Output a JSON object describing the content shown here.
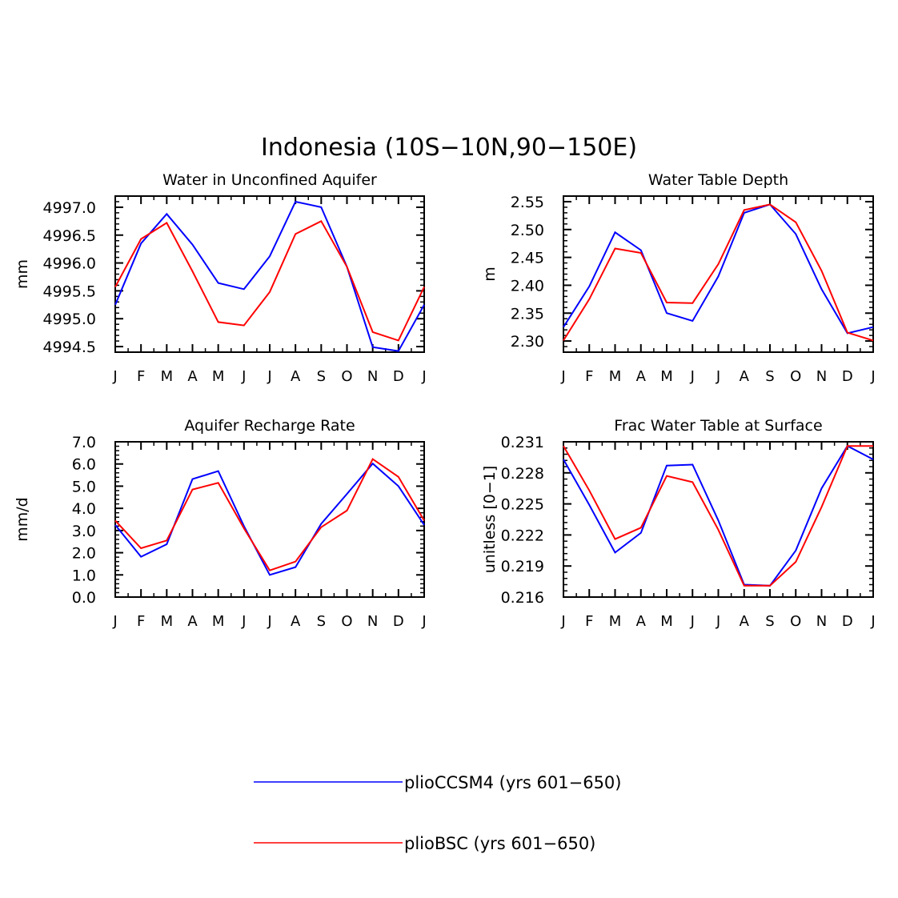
{
  "figure": {
    "title": "Indonesia (10S−10N,90−150E)"
  },
  "legend": {
    "placement": "bottom-center",
    "entries": [
      {
        "label": "plioCCSM4 (yrs 601−650)",
        "color": "#0000ff"
      },
      {
        "label": "plioBSC (yrs 601−650)",
        "color": "#ff0000"
      }
    ]
  },
  "chart_data": [
    {
      "type": "line",
      "title": "Water in Unconfined Aquifer",
      "xlabel": "",
      "ylabel": "mm",
      "categories": [
        "J",
        "F",
        "M",
        "A",
        "M",
        "J",
        "J",
        "A",
        "S",
        "O",
        "N",
        "D",
        "J"
      ],
      "ylim": [
        4994.4,
        4997.2
      ],
      "yticks": [
        4994.5,
        4995.0,
        4995.5,
        4996.0,
        4996.5,
        4997.0
      ],
      "ytick_labels": [
        "4994.5",
        "4995.0",
        "4995.5",
        "4996.0",
        "4996.5",
        "4997.0"
      ],
      "grid": false,
      "series": [
        {
          "name": "plioCCSM4 (yrs 601−650)",
          "color": "#0000ff",
          "values": [
            4995.25,
            4996.35,
            4996.88,
            4996.33,
            4995.64,
            4995.53,
            4996.12,
            4997.1,
            4997.0,
            4995.93,
            4994.49,
            4994.42,
            4995.25
          ]
        },
        {
          "name": "plioBSC (yrs 601−650)",
          "color": "#ff0000",
          "values": [
            4995.57,
            4996.43,
            4996.72,
            4995.85,
            4994.94,
            4994.88,
            4995.48,
            4996.52,
            4996.75,
            4995.93,
            4994.76,
            4994.61,
            4995.57
          ]
        }
      ]
    },
    {
      "type": "line",
      "title": "Water Table Depth",
      "xlabel": "",
      "ylabel": "m",
      "categories": [
        "J",
        "F",
        "M",
        "A",
        "M",
        "J",
        "J",
        "A",
        "S",
        "O",
        "N",
        "D",
        "J"
      ],
      "ylim": [
        2.28,
        2.56
      ],
      "yticks": [
        2.3,
        2.35,
        2.4,
        2.45,
        2.5,
        2.55
      ],
      "ytick_labels": [
        "2.30",
        "2.35",
        "2.40",
        "2.45",
        "2.50",
        "2.55"
      ],
      "grid": false,
      "series": [
        {
          "name": "plioCCSM4 (yrs 601−650)",
          "color": "#0000ff",
          "values": [
            2.325,
            2.398,
            2.495,
            2.463,
            2.35,
            2.336,
            2.416,
            2.53,
            2.545,
            2.492,
            2.393,
            2.314,
            2.325
          ]
        },
        {
          "name": "plioBSC (yrs 601−650)",
          "color": "#ff0000",
          "values": [
            2.301,
            2.375,
            2.466,
            2.458,
            2.369,
            2.368,
            2.438,
            2.535,
            2.545,
            2.513,
            2.426,
            2.315,
            2.301
          ]
        }
      ]
    },
    {
      "type": "line",
      "title": "Aquifer Recharge Rate",
      "xlabel": "",
      "ylabel": "mm/d",
      "categories": [
        "J",
        "F",
        "M",
        "A",
        "M",
        "J",
        "J",
        "A",
        "S",
        "O",
        "N",
        "D",
        "J"
      ],
      "ylim": [
        0.0,
        7.0
      ],
      "yticks": [
        0.0,
        1.0,
        2.0,
        3.0,
        4.0,
        5.0,
        6.0,
        7.0
      ],
      "ytick_labels": [
        "0.0",
        "1.0",
        "2.0",
        "3.0",
        "4.0",
        "5.0",
        "6.0",
        "7.0"
      ],
      "grid": false,
      "series": [
        {
          "name": "plioCCSM4 (yrs 601−650)",
          "color": "#0000ff",
          "values": [
            3.25,
            1.82,
            2.38,
            5.32,
            5.68,
            3.2,
            1.0,
            1.35,
            3.3,
            4.65,
            6.02,
            5.0,
            3.25
          ]
        },
        {
          "name": "plioBSC (yrs 601−650)",
          "color": "#ff0000",
          "values": [
            3.45,
            2.2,
            2.55,
            4.85,
            5.15,
            3.1,
            1.2,
            1.6,
            3.15,
            3.9,
            6.22,
            5.42,
            3.45
          ]
        }
      ]
    },
    {
      "type": "line",
      "title": "Frac Water Table at Surface",
      "xlabel": "",
      "ylabel": "unitless [0−1]",
      "categories": [
        "J",
        "F",
        "M",
        "A",
        "M",
        "J",
        "J",
        "A",
        "S",
        "O",
        "N",
        "D",
        "J"
      ],
      "ylim": [
        0.216,
        0.231
      ],
      "yticks": [
        0.216,
        0.219,
        0.222,
        0.225,
        0.228,
        0.231
      ],
      "ytick_labels": [
        "0.216",
        "0.219",
        "0.222",
        "0.225",
        "0.228",
        "0.231"
      ],
      "grid": false,
      "series": [
        {
          "name": "plioCCSM4 (yrs 601−650)",
          "color": "#0000ff",
          "values": [
            0.2293,
            0.2249,
            0.2203,
            0.2222,
            0.2287,
            0.2288,
            0.2234,
            0.2172,
            0.2171,
            0.2205,
            0.2265,
            0.2306,
            0.2293
          ]
        },
        {
          "name": "plioBSC (yrs 601−650)",
          "color": "#ff0000",
          "values": [
            0.2306,
            0.2263,
            0.2216,
            0.2227,
            0.2277,
            0.2271,
            0.2225,
            0.2171,
            0.2171,
            0.2194,
            0.2247,
            0.2306,
            0.2306
          ]
        }
      ]
    }
  ]
}
